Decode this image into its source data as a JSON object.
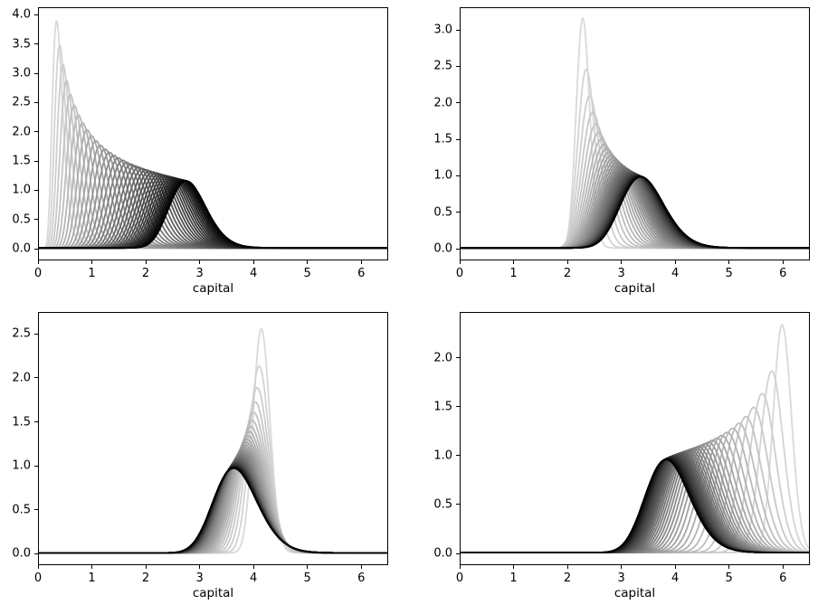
{
  "style": {
    "background": "#ffffff",
    "spine_color": "#000000",
    "tick_color": "#000000",
    "text_color": "#000000",
    "curve_color_first": "#d9d9d9",
    "curve_color_last": "#000000",
    "curve_line_width": 1.8
  },
  "chart_data": [
    {
      "id": "top-left",
      "type": "line",
      "title": "",
      "xlabel": "capital",
      "ylabel": "",
      "xlim": [
        0,
        6.5
      ],
      "ylim": [
        -0.2,
        4.13
      ],
      "xticks": [
        0,
        1,
        2,
        3,
        4,
        5,
        6
      ],
      "yticks": [
        0.0,
        0.5,
        1.0,
        1.5,
        2.0,
        2.5,
        3.0,
        3.5,
        4.0
      ],
      "xtick_decimals": 0,
      "ytick_decimals": 1,
      "grid": false,
      "legend": false,
      "n_curves": 40,
      "series_model": {
        "family": "lognormal-density-sequence",
        "mode_start": 0.33,
        "sigma_start": 0.295,
        "mode_final": 3.13,
        "sigma_final": 0.12,
        "mode_decay": 0.93,
        "sigma_decay": 0.9
      },
      "initial_peak": {
        "x": 0.33,
        "y": 3.93
      },
      "final_peak": {
        "x": 3.12,
        "y": 1.03
      }
    },
    {
      "id": "top-right",
      "type": "line",
      "title": "",
      "xlabel": "capital",
      "ylabel": "",
      "xlim": [
        0,
        6.5
      ],
      "ylim": [
        -0.16,
        3.31
      ],
      "xticks": [
        0,
        1,
        2,
        3,
        4,
        5,
        6
      ],
      "yticks": [
        0.0,
        0.5,
        1.0,
        1.5,
        2.0,
        2.5,
        3.0
      ],
      "xtick_decimals": 0,
      "ytick_decimals": 1,
      "grid": false,
      "legend": false,
      "n_curves": 40,
      "series_model": {
        "family": "lognormal-density-sequence",
        "mode_start": 2.28,
        "sigma_start": 0.055,
        "mode_final": 3.45,
        "sigma_final": 0.12,
        "mode_decay": 0.93,
        "sigma_decay": 0.85
      },
      "initial_peak": {
        "x": 2.28,
        "y": 3.15
      },
      "final_peak": {
        "x": 3.42,
        "y": 0.97
      }
    },
    {
      "id": "bottom-left",
      "type": "line",
      "title": "",
      "xlabel": "capital",
      "ylabel": "",
      "xlim": [
        0,
        6.5
      ],
      "ylim": [
        -0.13,
        2.75
      ],
      "xticks": [
        0,
        1,
        2,
        3,
        4,
        5,
        6
      ],
      "yticks": [
        0.0,
        0.5,
        1.0,
        1.5,
        2.0,
        2.5
      ],
      "xtick_decimals": 0,
      "ytick_decimals": 1,
      "grid": false,
      "legend": false,
      "n_curves": 40,
      "series_model": {
        "family": "lognormal-density-sequence",
        "mode_start": 4.15,
        "sigma_start": 0.0374,
        "mode_final": 3.6,
        "sigma_final": 0.12,
        "mode_decay": 0.93,
        "sigma_decay": 0.95
      },
      "initial_peak": {
        "x": 4.15,
        "y": 2.62
      },
      "final_peak": {
        "x": 3.58,
        "y": 0.93
      }
    },
    {
      "id": "bottom-right",
      "type": "line",
      "title": "",
      "xlabel": "capital",
      "ylabel": "",
      "xlim": [
        0,
        6.5
      ],
      "ylim": [
        -0.12,
        2.47
      ],
      "xticks": [
        0,
        1,
        2,
        3,
        4,
        5,
        6
      ],
      "yticks": [
        0.0,
        0.5,
        1.0,
        1.5,
        2.0
      ],
      "xtick_decimals": 0,
      "ytick_decimals": 1,
      "grid": false,
      "legend": false,
      "n_curves": 40,
      "series_model": {
        "family": "lognormal-density-sequence",
        "mode_start": 6.0,
        "sigma_start": 0.0283,
        "mode_final": 3.72,
        "sigma_final": 0.12,
        "mode_decay": 0.93,
        "sigma_decay": 0.96
      },
      "initial_peak": {
        "x": 6.0,
        "y": 2.35
      },
      "final_peak": {
        "x": 3.72,
        "y": 0.93
      }
    }
  ]
}
